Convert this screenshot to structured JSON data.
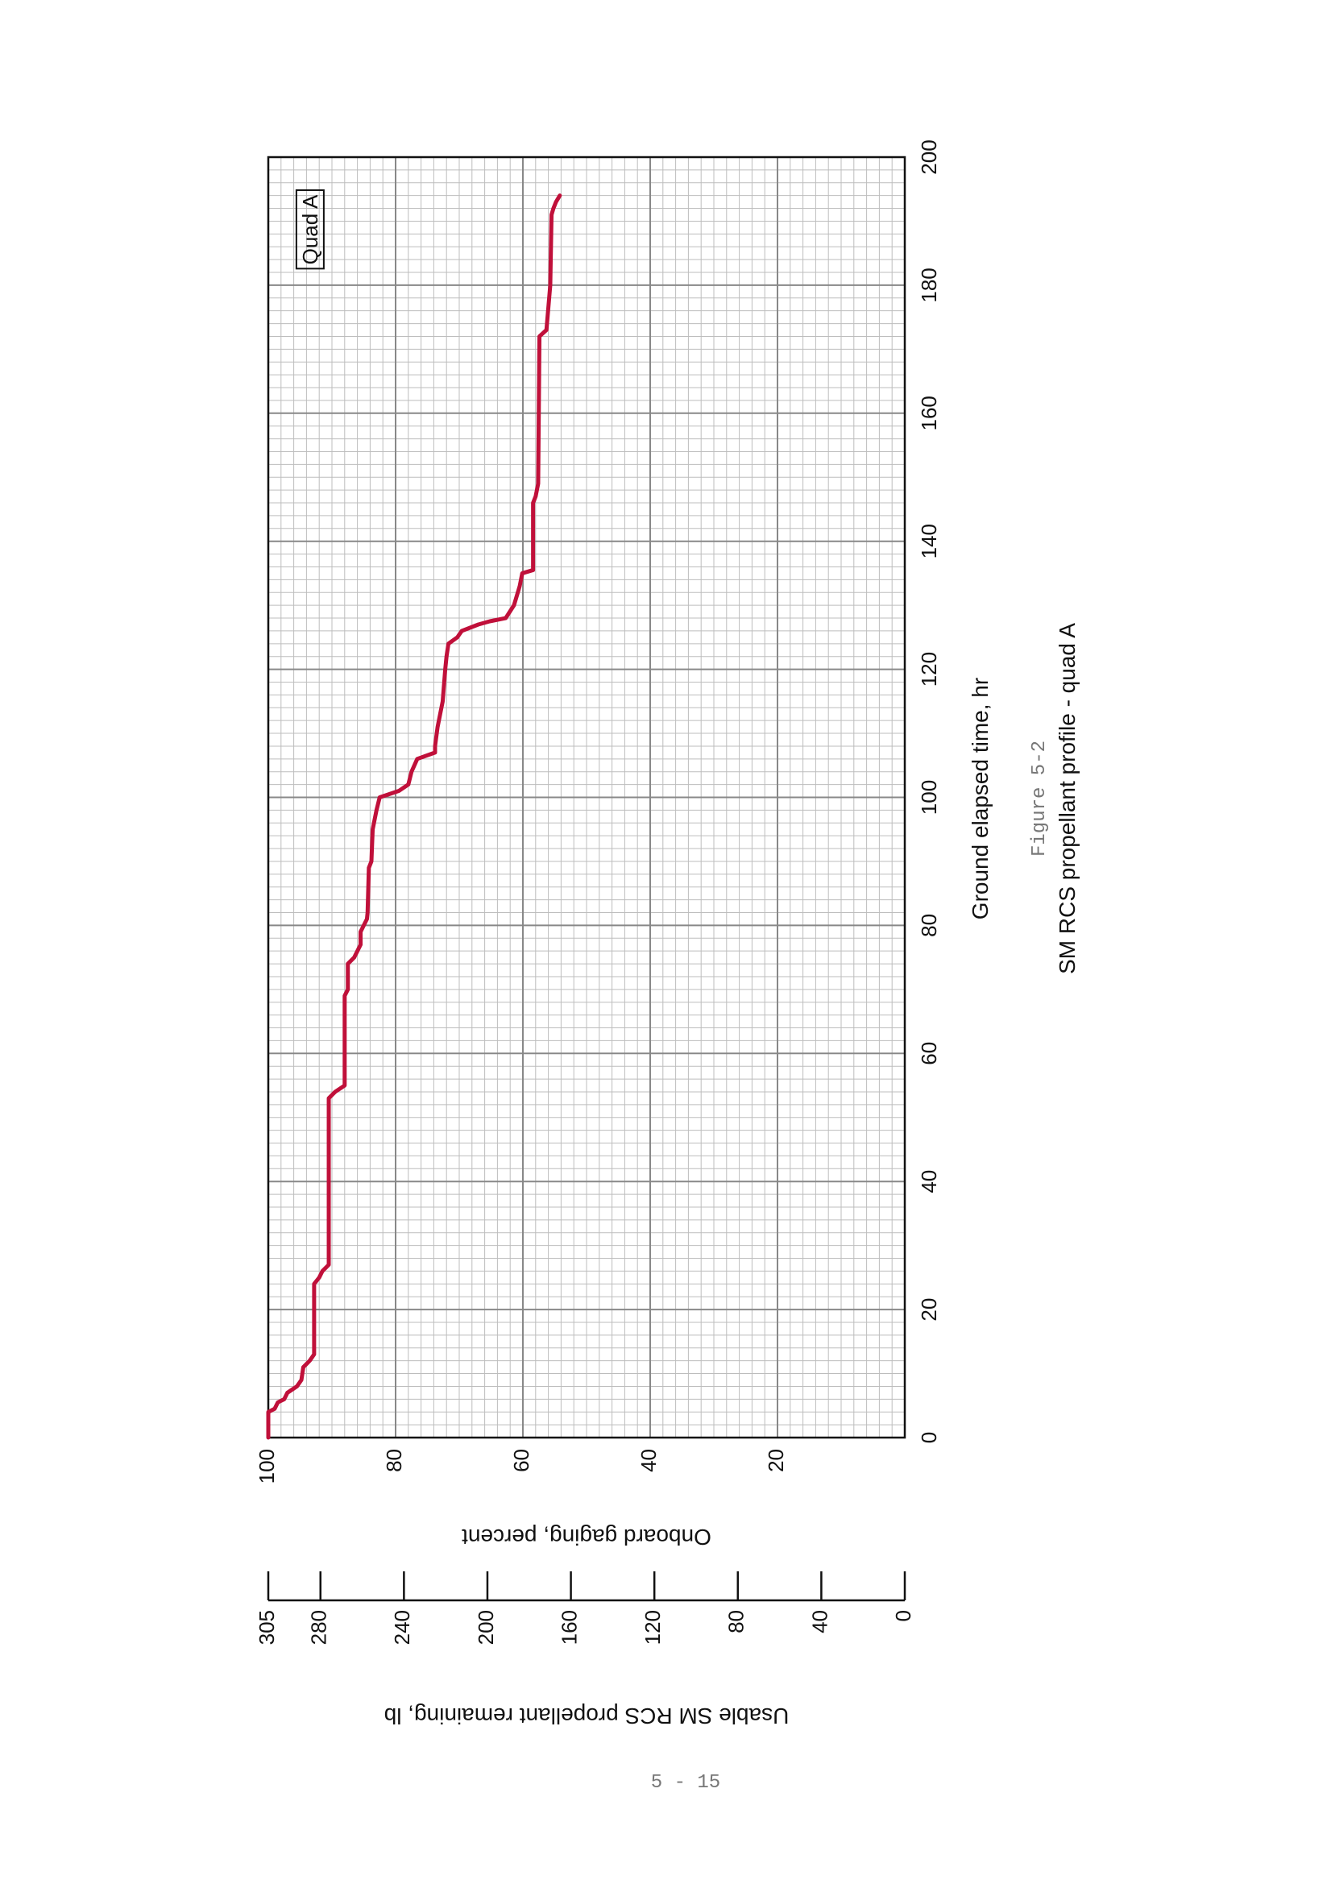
{
  "page_number": "5 - 15",
  "chart_data": {
    "type": "line",
    "figure_label": "Figure 5-2",
    "title": "SM RCS propellant profile - quad A",
    "annotation": "Quad A",
    "x_label": "Ground elapsed time, hr",
    "y_label": "Onboard gaging, percent",
    "y2_label": "Usable SM RCS propellant remaining, lb",
    "xlim": [
      0,
      200
    ],
    "xticks": [
      0,
      20,
      40,
      60,
      80,
      100,
      120,
      140,
      160,
      180,
      200
    ],
    "ylim": [
      0,
      100
    ],
    "yticks": [
      20,
      40,
      60,
      80,
      100
    ],
    "y2lim": [
      0,
      305
    ],
    "y2ticks": [
      0,
      40,
      80,
      120,
      160,
      200,
      240,
      280,
      305
    ],
    "grid": true,
    "series": [
      {
        "color": "#c0103a",
        "x": [
          0,
          4,
          4.5,
          5.5,
          6,
          7,
          8,
          9,
          11,
          12,
          13,
          24,
          25,
          26,
          27,
          53,
          54,
          55,
          69,
          70,
          74,
          75,
          77,
          79,
          80,
          81,
          82,
          89,
          90,
          95,
          98,
          100,
          101,
          102,
          104,
          106,
          107,
          108,
          111,
          113,
          115,
          120,
          122,
          124,
          125,
          126,
          127,
          127.5,
          128,
          130,
          133,
          135,
          135.5,
          146,
          147,
          149,
          172,
          173,
          180,
          191,
          192,
          193,
          194
        ],
        "values": [
          100,
          100,
          99,
          98.5,
          97.5,
          97,
          95.5,
          94.8,
          94.5,
          93.5,
          92.8,
          92.8,
          92,
          91.5,
          90.5,
          90.5,
          89.5,
          88,
          88,
          87.5,
          87.5,
          86.5,
          85.5,
          85.5,
          85,
          84.5,
          84.4,
          84.2,
          83.8,
          83.6,
          83,
          82.5,
          79.5,
          78,
          77.5,
          76.6,
          73.8,
          73.8,
          73.4,
          73,
          72.6,
          72.2,
          72,
          71.7,
          70.3,
          69.6,
          67,
          65.2,
          62.7,
          61.4,
          60.5,
          60.1,
          58.4,
          58.4,
          58,
          57.6,
          57.4,
          56.3,
          55.7,
          55.5,
          55.2,
          54.8,
          54.2
        ]
      }
    ]
  }
}
